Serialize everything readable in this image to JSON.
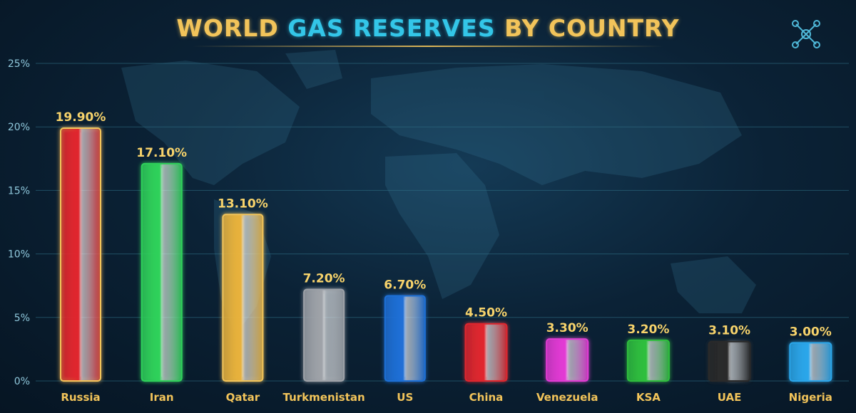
{
  "title": {
    "part1": "WORLD",
    "part2": "GAS RESERVES",
    "part3": "BY COUNTRY"
  },
  "icons": {
    "corner": "network-icon"
  },
  "colors": {
    "gold": "#f2c45a",
    "cyan": "#33c6e8",
    "grid": "#2f6f86"
  },
  "chart_data": {
    "type": "bar",
    "categories": [
      "Russia",
      "Iran",
      "Qatar",
      "Turkmenistan",
      "US",
      "China",
      "Venezuela",
      "KSA",
      "UAE",
      "Nigeria"
    ],
    "values": [
      19.9,
      17.1,
      13.1,
      7.2,
      6.7,
      4.5,
      3.3,
      3.2,
      3.1,
      3.0
    ],
    "data_labels": [
      "19.90%",
      "17.10%",
      "13.10%",
      "7.20%",
      "6.70%",
      "4.50%",
      "3.30%",
      "3.20%",
      "3.10%",
      "3.00%"
    ],
    "bar_colors": [
      "#e0262e",
      "#2fd15a",
      "#e8b23c",
      "#9ea2a8",
      "#1f6fd6",
      "#e0262e",
      "#e23ad4",
      "#2fbf3e",
      "#2a2a2a",
      "#2ba6ea"
    ],
    "yticks": [
      0,
      5,
      10,
      15,
      20,
      25
    ],
    "ytick_labels": [
      "0%",
      "5%",
      "10%",
      "15%",
      "20%",
      "25%"
    ],
    "ylim": [
      0,
      25
    ],
    "grid": true,
    "xlabel": "",
    "ylabel": ""
  }
}
